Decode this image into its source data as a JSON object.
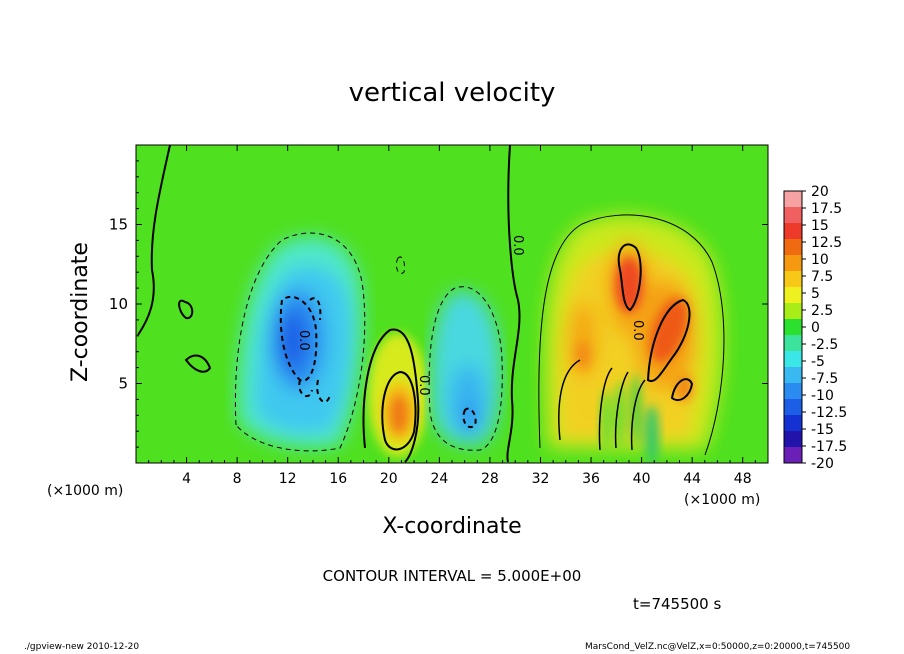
{
  "chart_data": {
    "type": "heatmap",
    "title": "vertical velocity",
    "xlabel": "X-coordinate",
    "ylabel": "Z-coordinate",
    "x_unit": "(×1000 m)",
    "y_unit": "(×1000 m)",
    "x_ticks": [
      4,
      8,
      12,
      16,
      20,
      24,
      28,
      32,
      36,
      40,
      44,
      48
    ],
    "y_ticks": [
      5,
      10,
      15
    ],
    "xlim": [
      0,
      50
    ],
    "ylim": [
      0,
      20
    ],
    "colorbar_ticks": [
      "20",
      "17.5",
      "15",
      "12.5",
      "10",
      "7.5",
      "5",
      "2.5",
      "0",
      "-2.5",
      "-5",
      "-7.5",
      "-10",
      "-12.5",
      "-15",
      "-17.5",
      "-20"
    ],
    "colorbar_colors": [
      "#f7a2a2",
      "#f06060",
      "#ee3a2a",
      "#f06a10",
      "#f59a10",
      "#f8c818",
      "#eef020",
      "#a8ec18",
      "#2ce030",
      "#3ce39c",
      "#3be6e6",
      "#3ab8f2",
      "#2a8cf0",
      "#1c5ee6",
      "#1432d2",
      "#2214aa",
      "#6a1fb6"
    ],
    "contour_labels": [
      "0.0",
      "0.0",
      "0.0",
      "0.0"
    ],
    "features": [
      {
        "kind": "updraft",
        "x": 21,
        "z": 3,
        "peak": 10
      },
      {
        "kind": "updraft",
        "x": 39.5,
        "z": 11,
        "peak": 12.5
      },
      {
        "kind": "updraft",
        "x": 42.5,
        "z": 8,
        "peak": 10
      },
      {
        "kind": "downdraft",
        "x": 12.5,
        "z": 7,
        "peak": -12.5
      },
      {
        "kind": "downdraft",
        "x": 26,
        "z": 2.5,
        "peak": -7.5
      }
    ]
  },
  "annotations": {
    "contour_interval": "CONTOUR INTERVAL = 5.000E+00",
    "time": "t=745500 s",
    "footer_left": "./gpview-new  2010-12-20",
    "footer_right": "MarsCond_VelZ.nc@VelZ,x=0:50000,z=0:20000,t=745500"
  },
  "colors": {
    "background_field": "#4fe01f",
    "frame": "#000000"
  }
}
